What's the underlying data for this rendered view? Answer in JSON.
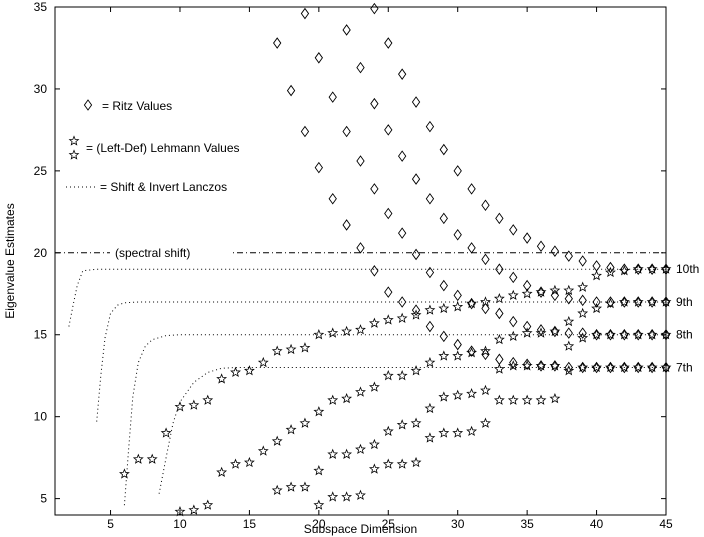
{
  "chart_data": {
    "type": "scatter",
    "xlabel": "Subspace Dimension",
    "ylabel": "Eigenvalue Estimates",
    "xlim": [
      1,
      45
    ],
    "ylim": [
      4,
      35
    ],
    "grid": false,
    "legend_placement": "top-left",
    "x_ticks": [
      5,
      10,
      15,
      20,
      25,
      30,
      35,
      40,
      45
    ],
    "y_ticks": [
      5,
      10,
      15,
      20,
      25,
      30,
      35
    ],
    "legend": {
      "ritz": "= Ritz Values",
      "lehmann": "= (Left-Def) Lehmann Values",
      "lanczos": "= Shift & Invert Lanczos"
    },
    "spectral_shift": {
      "value": 20,
      "label": "(spectral shift)"
    },
    "right_labels": [
      {
        "text": "10th",
        "y": 19
      },
      {
        "text": "9th",
        "y": 17
      },
      {
        "text": "8th",
        "y": 15
      },
      {
        "text": "7th",
        "y": 13
      }
    ],
    "series": [
      {
        "kind": "ritz",
        "points": [
          [
            17,
            32.8
          ],
          [
            18,
            29.9
          ],
          [
            19,
            27.4
          ],
          [
            19,
            34.6
          ],
          [
            20,
            25.2
          ],
          [
            20,
            31.9
          ],
          [
            21,
            23.3
          ],
          [
            21,
            29.5
          ],
          [
            22,
            21.7
          ],
          [
            22,
            27.4
          ],
          [
            22,
            33.6
          ],
          [
            23,
            20.3
          ],
          [
            23,
            25.6
          ],
          [
            23,
            31.3
          ],
          [
            24,
            18.9
          ],
          [
            24,
            23.9
          ],
          [
            24,
            29.1
          ],
          [
            24,
            34.9
          ],
          [
            25,
            17.6
          ],
          [
            25,
            22.4
          ],
          [
            25,
            27.5
          ],
          [
            25,
            32.8
          ],
          [
            26,
            17.0
          ],
          [
            26,
            21.2
          ],
          [
            26,
            25.9
          ],
          [
            26,
            30.9
          ],
          [
            27,
            16.5
          ],
          [
            27,
            19.9
          ],
          [
            27,
            24.5
          ],
          [
            27,
            29.2
          ],
          [
            28,
            15.5
          ],
          [
            28,
            18.8
          ],
          [
            28,
            23.3
          ],
          [
            28,
            27.7
          ],
          [
            29,
            14.9
          ],
          [
            29,
            18.0
          ],
          [
            29,
            22.1
          ],
          [
            29,
            26.3
          ],
          [
            30,
            14.4
          ],
          [
            30,
            17.4
          ],
          [
            30,
            21.1
          ],
          [
            30,
            25.0
          ],
          [
            31,
            14.0
          ],
          [
            31,
            16.9
          ],
          [
            31,
            20.3
          ],
          [
            31,
            23.9
          ],
          [
            32,
            13.8
          ],
          [
            32,
            16.6
          ],
          [
            32,
            19.6
          ],
          [
            32,
            22.9
          ],
          [
            33,
            13.5
          ],
          [
            33,
            16.3
          ],
          [
            33,
            19.0
          ],
          [
            33,
            22.1
          ],
          [
            34,
            13.3
          ],
          [
            34,
            15.8
          ],
          [
            34,
            18.5
          ],
          [
            34,
            21.4
          ],
          [
            35,
            13.2
          ],
          [
            35,
            15.5
          ],
          [
            35,
            18.0
          ],
          [
            35,
            20.9
          ],
          [
            36,
            13.1
          ],
          [
            36,
            15.3
          ],
          [
            36,
            17.6
          ],
          [
            36,
            20.4
          ],
          [
            37,
            13.1
          ],
          [
            37,
            15.2
          ],
          [
            37,
            17.4
          ],
          [
            37,
            20.1
          ],
          [
            38,
            13.0
          ],
          [
            38,
            15.1
          ],
          [
            38,
            17.2
          ],
          [
            38,
            19.8
          ],
          [
            39,
            13.0
          ],
          [
            39,
            15.1
          ],
          [
            39,
            17.1
          ],
          [
            39,
            19.5
          ],
          [
            40,
            13.0
          ],
          [
            40,
            15.0
          ],
          [
            40,
            17.0
          ],
          [
            40,
            19.2
          ],
          [
            41,
            13.0
          ],
          [
            41,
            15.0
          ],
          [
            41,
            17.0
          ],
          [
            41,
            19.1
          ],
          [
            42,
            13.0
          ],
          [
            42,
            15.0
          ],
          [
            42,
            17.0
          ],
          [
            42,
            19.0
          ],
          [
            43,
            13.0
          ],
          [
            43,
            15.0
          ],
          [
            43,
            17.0
          ],
          [
            43,
            19.0
          ],
          [
            44,
            13.0
          ],
          [
            44,
            15.0
          ],
          [
            44,
            17.0
          ],
          [
            44,
            19.0
          ],
          [
            45,
            13.0
          ],
          [
            45,
            15.0
          ],
          [
            45,
            17.0
          ],
          [
            45,
            19.0
          ]
        ]
      },
      {
        "kind": "lehmann",
        "points": [
          [
            6,
            6.5
          ],
          [
            7,
            7.4
          ],
          [
            8,
            7.4
          ],
          [
            9,
            9.0
          ],
          [
            10,
            10.6
          ],
          [
            11,
            10.7
          ],
          [
            12,
            11.0
          ],
          [
            13,
            12.3
          ],
          [
            14,
            12.7
          ],
          [
            15,
            12.8
          ],
          [
            16,
            13.3
          ],
          [
            17,
            14.0
          ],
          [
            18,
            14.1
          ],
          [
            19,
            14.2
          ],
          [
            20,
            15.0
          ],
          [
            21,
            15.1
          ],
          [
            22,
            15.2
          ],
          [
            23,
            15.3
          ],
          [
            24,
            15.7
          ],
          [
            25,
            15.9
          ],
          [
            26,
            16.0
          ],
          [
            27,
            16.2
          ],
          [
            28,
            16.5
          ],
          [
            29,
            16.6
          ],
          [
            30,
            16.7
          ],
          [
            31,
            16.9
          ],
          [
            32,
            17.0
          ],
          [
            33,
            17.2
          ],
          [
            34,
            17.4
          ],
          [
            35,
            17.5
          ],
          [
            36,
            17.6
          ],
          [
            37,
            17.7
          ],
          [
            38,
            17.7
          ],
          [
            39,
            17.9
          ],
          [
            40,
            18.6
          ],
          [
            41,
            18.8
          ],
          [
            42,
            18.9
          ],
          [
            43,
            19.0
          ],
          [
            44,
            19.0
          ],
          [
            45,
            19.0
          ],
          [
            10,
            4.2
          ],
          [
            11,
            4.3
          ],
          [
            12,
            4.6
          ],
          [
            13,
            6.6
          ],
          [
            14,
            7.1
          ],
          [
            15,
            7.2
          ],
          [
            16,
            7.9
          ],
          [
            17,
            8.5
          ],
          [
            18,
            9.2
          ],
          [
            19,
            9.6
          ],
          [
            20,
            10.3
          ],
          [
            21,
            11.0
          ],
          [
            22,
            11.1
          ],
          [
            23,
            11.5
          ],
          [
            24,
            11.8
          ],
          [
            25,
            12.5
          ],
          [
            26,
            12.5
          ],
          [
            27,
            12.8
          ],
          [
            28,
            13.3
          ],
          [
            29,
            13.7
          ],
          [
            30,
            13.7
          ],
          [
            31,
            13.9
          ],
          [
            32,
            14.0
          ],
          [
            33,
            14.7
          ],
          [
            34,
            14.9
          ],
          [
            35,
            15.1
          ],
          [
            36,
            15.1
          ],
          [
            37,
            15.2
          ],
          [
            38,
            15.8
          ],
          [
            39,
            16.3
          ],
          [
            40,
            16.6
          ],
          [
            41,
            16.9
          ],
          [
            42,
            17.0
          ],
          [
            43,
            17.0
          ],
          [
            44,
            17.0
          ],
          [
            45,
            17.0
          ],
          [
            17,
            5.5
          ],
          [
            18,
            5.7
          ],
          [
            19,
            5.7
          ],
          [
            20,
            6.7
          ],
          [
            21,
            7.7
          ],
          [
            22,
            7.7
          ],
          [
            23,
            8.0
          ],
          [
            24,
            8.3
          ],
          [
            25,
            9.1
          ],
          [
            26,
            9.5
          ],
          [
            27,
            9.6
          ],
          [
            28,
            10.5
          ],
          [
            29,
            11.2
          ],
          [
            30,
            11.3
          ],
          [
            31,
            11.4
          ],
          [
            32,
            11.6
          ],
          [
            33,
            12.9
          ],
          [
            34,
            13.1
          ],
          [
            35,
            13.1
          ],
          [
            36,
            13.1
          ],
          [
            37,
            13.1
          ],
          [
            38,
            14.3
          ],
          [
            39,
            14.8
          ],
          [
            40,
            15.0
          ],
          [
            41,
            15.0
          ],
          [
            42,
            15.0
          ],
          [
            43,
            15.0
          ],
          [
            44,
            15.0
          ],
          [
            45,
            15.0
          ],
          [
            20,
            4.6
          ],
          [
            21,
            5.1
          ],
          [
            22,
            5.1
          ],
          [
            23,
            5.2
          ],
          [
            24,
            6.8
          ],
          [
            25,
            7.1
          ],
          [
            26,
            7.1
          ],
          [
            27,
            7.2
          ],
          [
            28,
            8.7
          ],
          [
            29,
            9.0
          ],
          [
            30,
            9.0
          ],
          [
            31,
            9.1
          ],
          [
            32,
            9.6
          ],
          [
            33,
            11.0
          ],
          [
            34,
            11.0
          ],
          [
            35,
            11.0
          ],
          [
            36,
            11.0
          ],
          [
            37,
            11.1
          ],
          [
            38,
            12.8
          ],
          [
            39,
            13.0
          ],
          [
            40,
            13.0
          ],
          [
            41,
            13.0
          ],
          [
            42,
            13.0
          ],
          [
            43,
            13.0
          ],
          [
            44,
            13.0
          ],
          [
            45,
            13.0
          ]
        ]
      },
      {
        "kind": "lanczos",
        "curves": [
          [
            [
              2,
              15.5
            ],
            [
              2.3,
              16.8
            ],
            [
              2.6,
              18.0
            ],
            [
              3,
              18.9
            ],
            [
              4,
              19.0
            ],
            [
              45,
              19.0
            ]
          ],
          [
            [
              4,
              9.7
            ],
            [
              4.3,
              12.5
            ],
            [
              4.6,
              14.8
            ],
            [
              5,
              16.3
            ],
            [
              5.5,
              16.8
            ],
            [
              6,
              16.95
            ],
            [
              7,
              17.0
            ],
            [
              45,
              17.0
            ]
          ],
          [
            [
              6,
              4.6
            ],
            [
              6.3,
              8.0
            ],
            [
              6.6,
              11.2
            ],
            [
              7,
              13.3
            ],
            [
              7.5,
              14.3
            ],
            [
              8,
              14.7
            ],
            [
              9,
              14.95
            ],
            [
              10,
              15.0
            ],
            [
              45,
              15.0
            ]
          ],
          [
            [
              8.5,
              5.3
            ],
            [
              9,
              7.5
            ],
            [
              9.5,
              9.6
            ],
            [
              10,
              10.9
            ],
            [
              11,
              12.1
            ],
            [
              12,
              12.7
            ],
            [
              13,
              12.95
            ],
            [
              14,
              13.0
            ],
            [
              45,
              13.0
            ]
          ]
        ]
      }
    ]
  }
}
